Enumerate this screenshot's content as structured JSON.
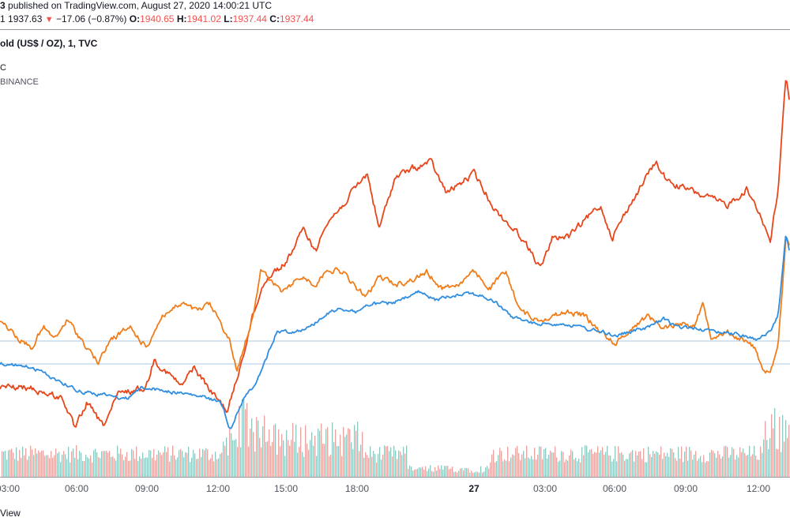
{
  "header": {
    "publisher_user": "3",
    "published_text": " published on TradingView.com, August 27, 2020 14:00:21 UTC",
    "ohlc": {
      "price_prefix": "1",
      "last": "1937.63",
      "arrow": "▼",
      "change": "−17.06 (−0.87%)",
      "open_label": "O:",
      "open": "1940.65",
      "high_label": "H:",
      "high": "1941.02",
      "low_label": "L:",
      "low": "1937.44",
      "close_label": "C:",
      "close": "1937.44"
    }
  },
  "chart": {
    "main_symbol": "old (US$ / OZ), 1, TVC",
    "legend": [
      "C",
      "BINANCE"
    ],
    "x_ticks": [
      {
        "label": "03:00",
        "bold": false
      },
      {
        "label": "06:00",
        "bold": false
      },
      {
        "label": "09:00",
        "bold": false
      },
      {
        "label": "12:00",
        "bold": false
      },
      {
        "label": "15:00",
        "bold": false
      },
      {
        "label": "18:00",
        "bold": false
      },
      {
        "label": "27",
        "bold": true
      },
      {
        "label": "03:00",
        "bold": false
      },
      {
        "label": "06:00",
        "bold": false
      },
      {
        "label": "09:00",
        "bold": false
      },
      {
        "label": "12:00",
        "bold": false
      }
    ],
    "colors": {
      "red_series": "#e8451a",
      "orange_series": "#f07d1a",
      "blue_series": "#2f8ee0",
      "volume_up": "#8fc7c0",
      "volume_down": "#e9a3a0",
      "hline": "#a8c8e8"
    },
    "series_anchor_points": {
      "red": [
        [
          0,
          490
        ],
        [
          40,
          492
        ],
        [
          80,
          505
        ],
        [
          95,
          545
        ],
        [
          110,
          510
        ],
        [
          130,
          540
        ],
        [
          150,
          500
        ],
        [
          185,
          490
        ],
        [
          195,
          455
        ],
        [
          230,
          490
        ],
        [
          245,
          465
        ],
        [
          270,
          500
        ],
        [
          288,
          520
        ],
        [
          300,
          480
        ],
        [
          320,
          400
        ],
        [
          335,
          355
        ],
        [
          345,
          345
        ],
        [
          360,
          335
        ],
        [
          385,
          290
        ],
        [
          400,
          320
        ],
        [
          410,
          285
        ],
        [
          430,
          265
        ],
        [
          445,
          245
        ],
        [
          465,
          220
        ],
        [
          480,
          290
        ],
        [
          500,
          225
        ],
        [
          520,
          215
        ],
        [
          545,
          205
        ],
        [
          565,
          245
        ],
        [
          600,
          220
        ],
        [
          630,
          270
        ],
        [
          660,
          300
        ],
        [
          685,
          340
        ],
        [
          700,
          300
        ],
        [
          720,
          300
        ],
        [
          740,
          280
        ],
        [
          760,
          260
        ],
        [
          775,
          300
        ],
        [
          800,
          255
        ],
        [
          830,
          205
        ],
        [
          845,
          230
        ],
        [
          870,
          240
        ],
        [
          895,
          250
        ],
        [
          920,
          260
        ],
        [
          945,
          240
        ],
        [
          960,
          265
        ],
        [
          975,
          305
        ],
        [
          985,
          240
        ],
        [
          995,
          95
        ],
        [
          1000,
          130
        ]
      ],
      "orange": [
        [
          0,
          405
        ],
        [
          25,
          430
        ],
        [
          40,
          440
        ],
        [
          55,
          415
        ],
        [
          70,
          430
        ],
        [
          85,
          405
        ],
        [
          110,
          440
        ],
        [
          125,
          460
        ],
        [
          140,
          430
        ],
        [
          165,
          415
        ],
        [
          185,
          440
        ],
        [
          205,
          400
        ],
        [
          230,
          385
        ],
        [
          250,
          395
        ],
        [
          265,
          385
        ],
        [
          280,
          410
        ],
        [
          290,
          430
        ],
        [
          300,
          470
        ],
        [
          320,
          400
        ],
        [
          330,
          340
        ],
        [
          345,
          360
        ],
        [
          360,
          370
        ],
        [
          380,
          350
        ],
        [
          400,
          360
        ],
        [
          415,
          340
        ],
        [
          435,
          345
        ],
        [
          450,
          365
        ],
        [
          465,
          375
        ],
        [
          480,
          350
        ],
        [
          500,
          360
        ],
        [
          520,
          355
        ],
        [
          540,
          345
        ],
        [
          560,
          365
        ],
        [
          580,
          360
        ],
        [
          600,
          345
        ],
        [
          620,
          365
        ],
        [
          640,
          345
        ],
        [
          660,
          395
        ],
        [
          680,
          405
        ],
        [
          700,
          400
        ],
        [
          720,
          395
        ],
        [
          740,
          400
        ],
        [
          760,
          420
        ],
        [
          780,
          435
        ],
        [
          800,
          415
        ],
        [
          820,
          400
        ],
        [
          840,
          415
        ],
        [
          860,
          410
        ],
        [
          880,
          410
        ],
        [
          890,
          385
        ],
        [
          900,
          425
        ],
        [
          920,
          420
        ],
        [
          940,
          430
        ],
        [
          955,
          440
        ],
        [
          965,
          465
        ],
        [
          975,
          475
        ],
        [
          985,
          440
        ],
        [
          995,
          300
        ],
        [
          1000,
          310
        ]
      ],
      "blue": [
        [
          0,
          460
        ],
        [
          40,
          465
        ],
        [
          70,
          480
        ],
        [
          100,
          495
        ],
        [
          130,
          500
        ],
        [
          160,
          505
        ],
        [
          180,
          490
        ],
        [
          210,
          495
        ],
        [
          240,
          500
        ],
        [
          265,
          505
        ],
        [
          280,
          510
        ],
        [
          292,
          545
        ],
        [
          305,
          510
        ],
        [
          320,
          490
        ],
        [
          335,
          460
        ],
        [
          350,
          420
        ],
        [
          370,
          420
        ],
        [
          390,
          415
        ],
        [
          410,
          400
        ],
        [
          430,
          390
        ],
        [
          450,
          395
        ],
        [
          470,
          385
        ],
        [
          490,
          385
        ],
        [
          510,
          380
        ],
        [
          530,
          370
        ],
        [
          550,
          380
        ],
        [
          570,
          375
        ],
        [
          590,
          370
        ],
        [
          610,
          375
        ],
        [
          630,
          385
        ],
        [
          645,
          400
        ],
        [
          660,
          405
        ],
        [
          675,
          410
        ],
        [
          695,
          410
        ],
        [
          715,
          410
        ],
        [
          735,
          415
        ],
        [
          760,
          420
        ],
        [
          780,
          425
        ],
        [
          800,
          420
        ],
        [
          820,
          415
        ],
        [
          840,
          405
        ],
        [
          860,
          415
        ],
        [
          880,
          415
        ],
        [
          900,
          420
        ],
        [
          920,
          420
        ],
        [
          940,
          425
        ],
        [
          960,
          430
        ],
        [
          975,
          420
        ],
        [
          985,
          400
        ],
        [
          995,
          295
        ],
        [
          1000,
          325
        ]
      ]
    }
  },
  "footer": {
    "text": "View"
  }
}
